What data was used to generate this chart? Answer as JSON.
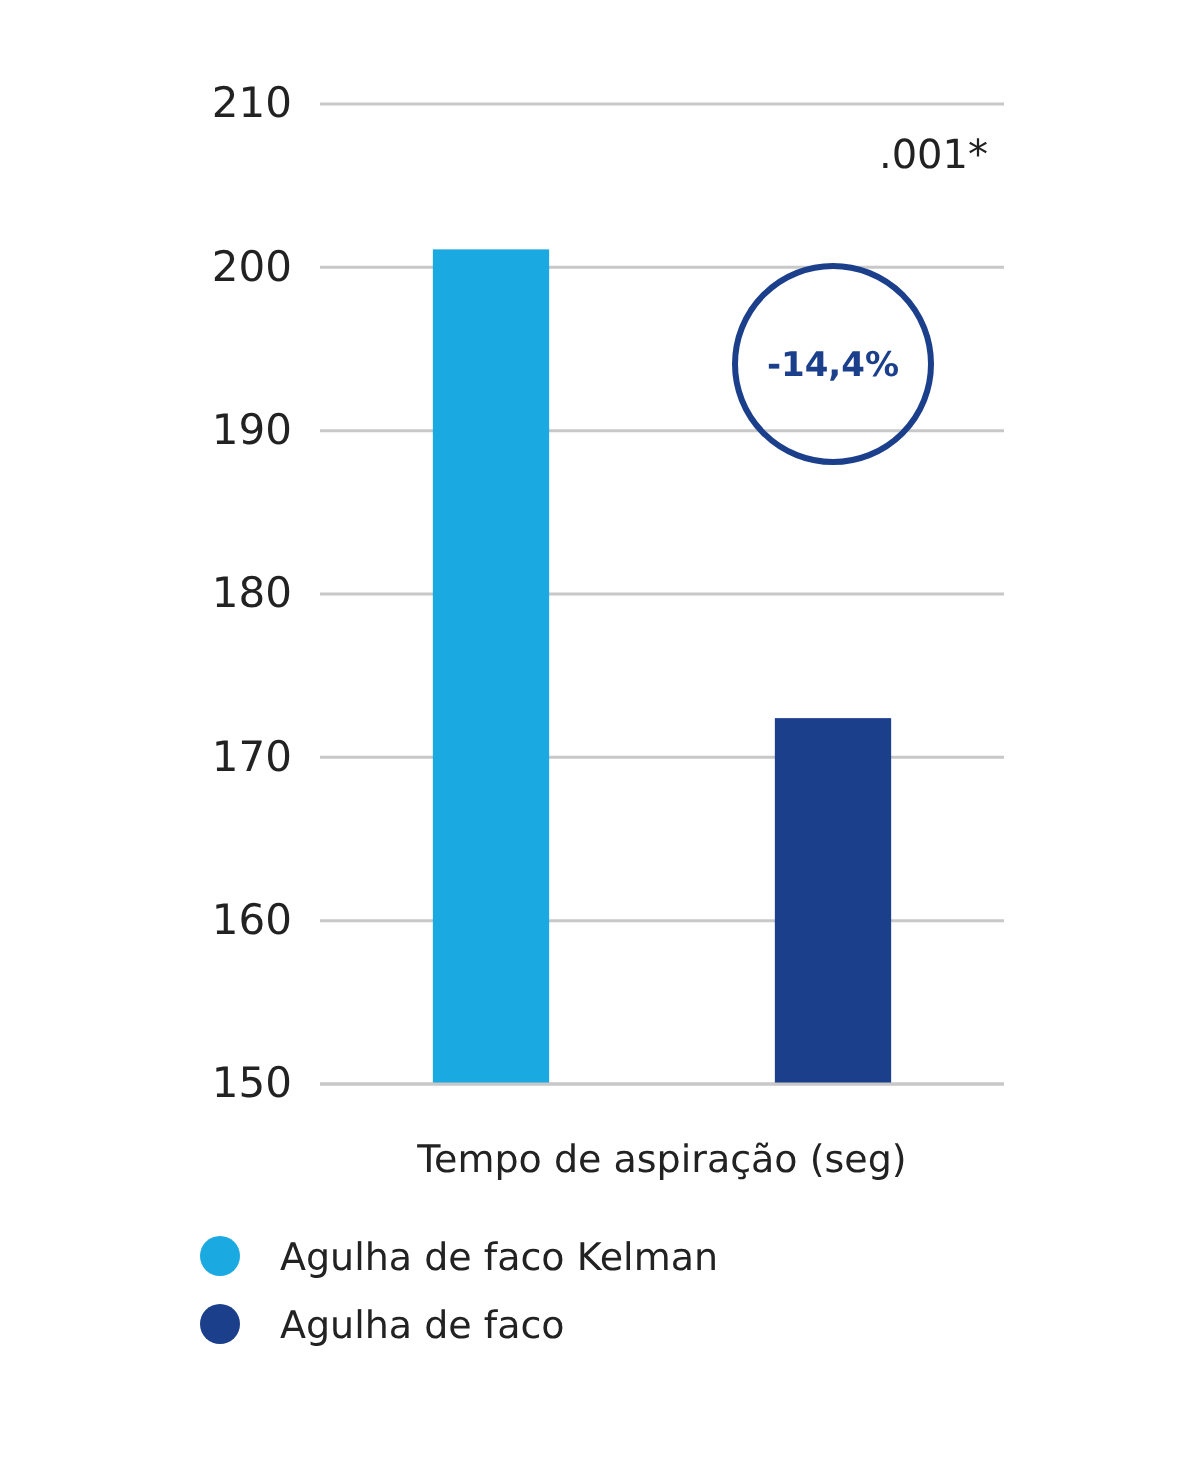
{
  "chart_data": {
    "type": "bar",
    "xlabel": "Tempo de aspiração (seg)",
    "categories": [
      null,
      null
    ],
    "series": [
      {
        "name": "Agulha de faco Kelman",
        "color": "#1ba9e1",
        "values": [
          201.1,
          null
        ]
      },
      {
        "name": "Agulha de faco",
        "color": "#1b3f8b",
        "values": [
          null,
          172.4
        ]
      }
    ],
    "ylim": [
      150,
      210
    ],
    "yticks": [
      150,
      160,
      170,
      180,
      190,
      200,
      210
    ],
    "grid": "y",
    "legend": "bottom",
    "annotations": [
      ".001*",
      "-14,4%"
    ]
  }
}
